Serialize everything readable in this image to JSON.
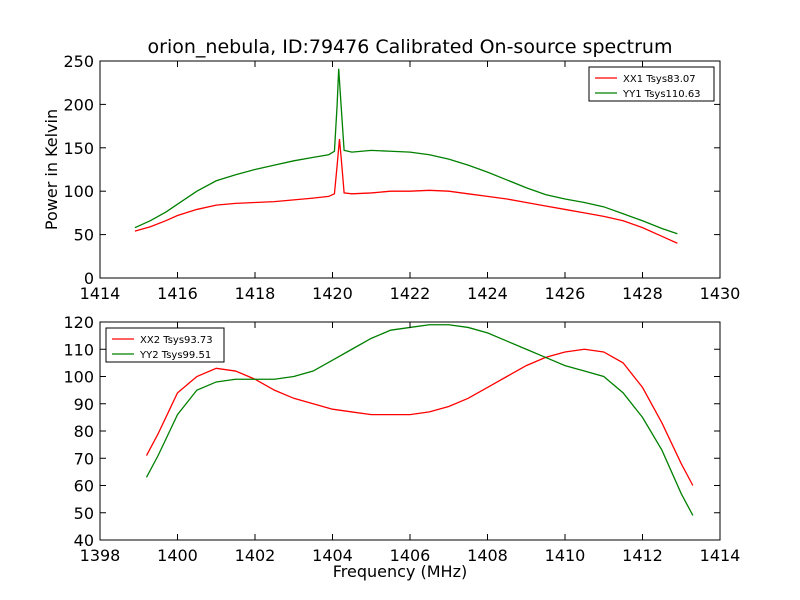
{
  "figure": {
    "title": "orion_nebula, ID:79476 Calibrated On-source spectrum"
  },
  "chart_data": [
    {
      "type": "line",
      "title": "orion_nebula, ID:79476 Calibrated On-source spectrum",
      "xlabel": "",
      "ylabel": "Power in Kelvin",
      "xlim": [
        1414,
        1430
      ],
      "ylim": [
        0,
        250
      ],
      "xticks": [
        1414,
        1416,
        1418,
        1420,
        1422,
        1424,
        1426,
        1428,
        1430
      ],
      "yticks": [
        0,
        50,
        100,
        150,
        200,
        250
      ],
      "legend": "top-right",
      "grid": false,
      "series": [
        {
          "name": "XX1 Tsys83.07",
          "color": "#ff0000",
          "points": [
            [
              1414.9,
              54
            ],
            [
              1415.3,
              59
            ],
            [
              1415.7,
              66
            ],
            [
              1416.0,
              72
            ],
            [
              1416.5,
              79
            ],
            [
              1417.0,
              84
            ],
            [
              1417.5,
              86
            ],
            [
              1418.0,
              87
            ],
            [
              1418.5,
              88
            ],
            [
              1419.0,
              90
            ],
            [
              1419.5,
              92
            ],
            [
              1419.9,
              94
            ],
            [
              1420.05,
              97
            ],
            [
              1420.12,
              130
            ],
            [
              1420.18,
              160
            ],
            [
              1420.24,
              130
            ],
            [
              1420.3,
              98
            ],
            [
              1420.5,
              97
            ],
            [
              1421.0,
              98
            ],
            [
              1421.5,
              100
            ],
            [
              1422.0,
              100
            ],
            [
              1422.5,
              101
            ],
            [
              1423.0,
              100
            ],
            [
              1423.5,
              97
            ],
            [
              1424.0,
              94
            ],
            [
              1424.5,
              91
            ],
            [
              1425.0,
              87
            ],
            [
              1425.5,
              83
            ],
            [
              1426.0,
              79
            ],
            [
              1426.5,
              75
            ],
            [
              1427.0,
              71
            ],
            [
              1427.5,
              66
            ],
            [
              1428.0,
              58
            ],
            [
              1428.5,
              48
            ],
            [
              1428.9,
              40
            ]
          ]
        },
        {
          "name": "YY1 Tsys110.63",
          "color": "#008000",
          "points": [
            [
              1414.9,
              58
            ],
            [
              1415.3,
              66
            ],
            [
              1415.7,
              76
            ],
            [
              1416.0,
              85
            ],
            [
              1416.5,
              100
            ],
            [
              1417.0,
              112
            ],
            [
              1417.5,
              119
            ],
            [
              1418.0,
              125
            ],
            [
              1418.5,
              130
            ],
            [
              1419.0,
              135
            ],
            [
              1419.5,
              139
            ],
            [
              1419.9,
              142
            ],
            [
              1420.05,
              146
            ],
            [
              1420.12,
              200
            ],
            [
              1420.16,
              241
            ],
            [
              1420.22,
              200
            ],
            [
              1420.3,
              147
            ],
            [
              1420.5,
              145
            ],
            [
              1421.0,
              147
            ],
            [
              1421.5,
              146
            ],
            [
              1422.0,
              145
            ],
            [
              1422.5,
              142
            ],
            [
              1423.0,
              137
            ],
            [
              1423.5,
              130
            ],
            [
              1424.0,
              122
            ],
            [
              1424.5,
              113
            ],
            [
              1425.0,
              104
            ],
            [
              1425.5,
              96
            ],
            [
              1426.0,
              91
            ],
            [
              1426.5,
              87
            ],
            [
              1427.0,
              82
            ],
            [
              1427.5,
              74
            ],
            [
              1428.0,
              66
            ],
            [
              1428.5,
              57
            ],
            [
              1428.9,
              51
            ]
          ]
        }
      ]
    },
    {
      "type": "line",
      "title": "",
      "xlabel": "Frequency (MHz)",
      "ylabel": "",
      "xlim": [
        1398,
        1414
      ],
      "ylim": [
        40,
        120
      ],
      "xticks": [
        1398,
        1400,
        1402,
        1404,
        1406,
        1408,
        1410,
        1412,
        1414
      ],
      "yticks": [
        40,
        50,
        60,
        70,
        80,
        90,
        100,
        110,
        120
      ],
      "legend": "top-left",
      "grid": false,
      "series": [
        {
          "name": "XX2 Tsys93.73",
          "color": "#ff0000",
          "points": [
            [
              1399.2,
              71
            ],
            [
              1399.5,
              79
            ],
            [
              1399.8,
              88
            ],
            [
              1400.0,
              94
            ],
            [
              1400.5,
              100
            ],
            [
              1401.0,
              103
            ],
            [
              1401.5,
              102
            ],
            [
              1402.0,
              99
            ],
            [
              1402.5,
              95
            ],
            [
              1403.0,
              92
            ],
            [
              1403.5,
              90
            ],
            [
              1404.0,
              88
            ],
            [
              1404.5,
              87
            ],
            [
              1405.0,
              86
            ],
            [
              1405.5,
              86
            ],
            [
              1406.0,
              86
            ],
            [
              1406.5,
              87
            ],
            [
              1407.0,
              89
            ],
            [
              1407.5,
              92
            ],
            [
              1408.0,
              96
            ],
            [
              1408.5,
              100
            ],
            [
              1409.0,
              104
            ],
            [
              1409.5,
              107
            ],
            [
              1410.0,
              109
            ],
            [
              1410.5,
              110
            ],
            [
              1411.0,
              109
            ],
            [
              1411.5,
              105
            ],
            [
              1412.0,
              96
            ],
            [
              1412.5,
              83
            ],
            [
              1413.0,
              68
            ],
            [
              1413.3,
              60
            ]
          ]
        },
        {
          "name": "YY2 Tsys99.51",
          "color": "#008000",
          "points": [
            [
              1399.2,
              63
            ],
            [
              1399.5,
              71
            ],
            [
              1399.8,
              80
            ],
            [
              1400.0,
              86
            ],
            [
              1400.5,
              95
            ],
            [
              1401.0,
              98
            ],
            [
              1401.5,
              99
            ],
            [
              1402.0,
              99
            ],
            [
              1402.5,
              99
            ],
            [
              1403.0,
              100
            ],
            [
              1403.5,
              102
            ],
            [
              1404.0,
              106
            ],
            [
              1404.5,
              110
            ],
            [
              1405.0,
              114
            ],
            [
              1405.5,
              117
            ],
            [
              1406.0,
              118
            ],
            [
              1406.5,
              119
            ],
            [
              1407.0,
              119
            ],
            [
              1407.5,
              118
            ],
            [
              1408.0,
              116
            ],
            [
              1408.5,
              113
            ],
            [
              1409.0,
              110
            ],
            [
              1409.5,
              107
            ],
            [
              1410.0,
              104
            ],
            [
              1410.5,
              102
            ],
            [
              1411.0,
              100
            ],
            [
              1411.5,
              94
            ],
            [
              1412.0,
              85
            ],
            [
              1412.5,
              73
            ],
            [
              1413.0,
              57
            ],
            [
              1413.3,
              49
            ]
          ]
        }
      ]
    }
  ]
}
